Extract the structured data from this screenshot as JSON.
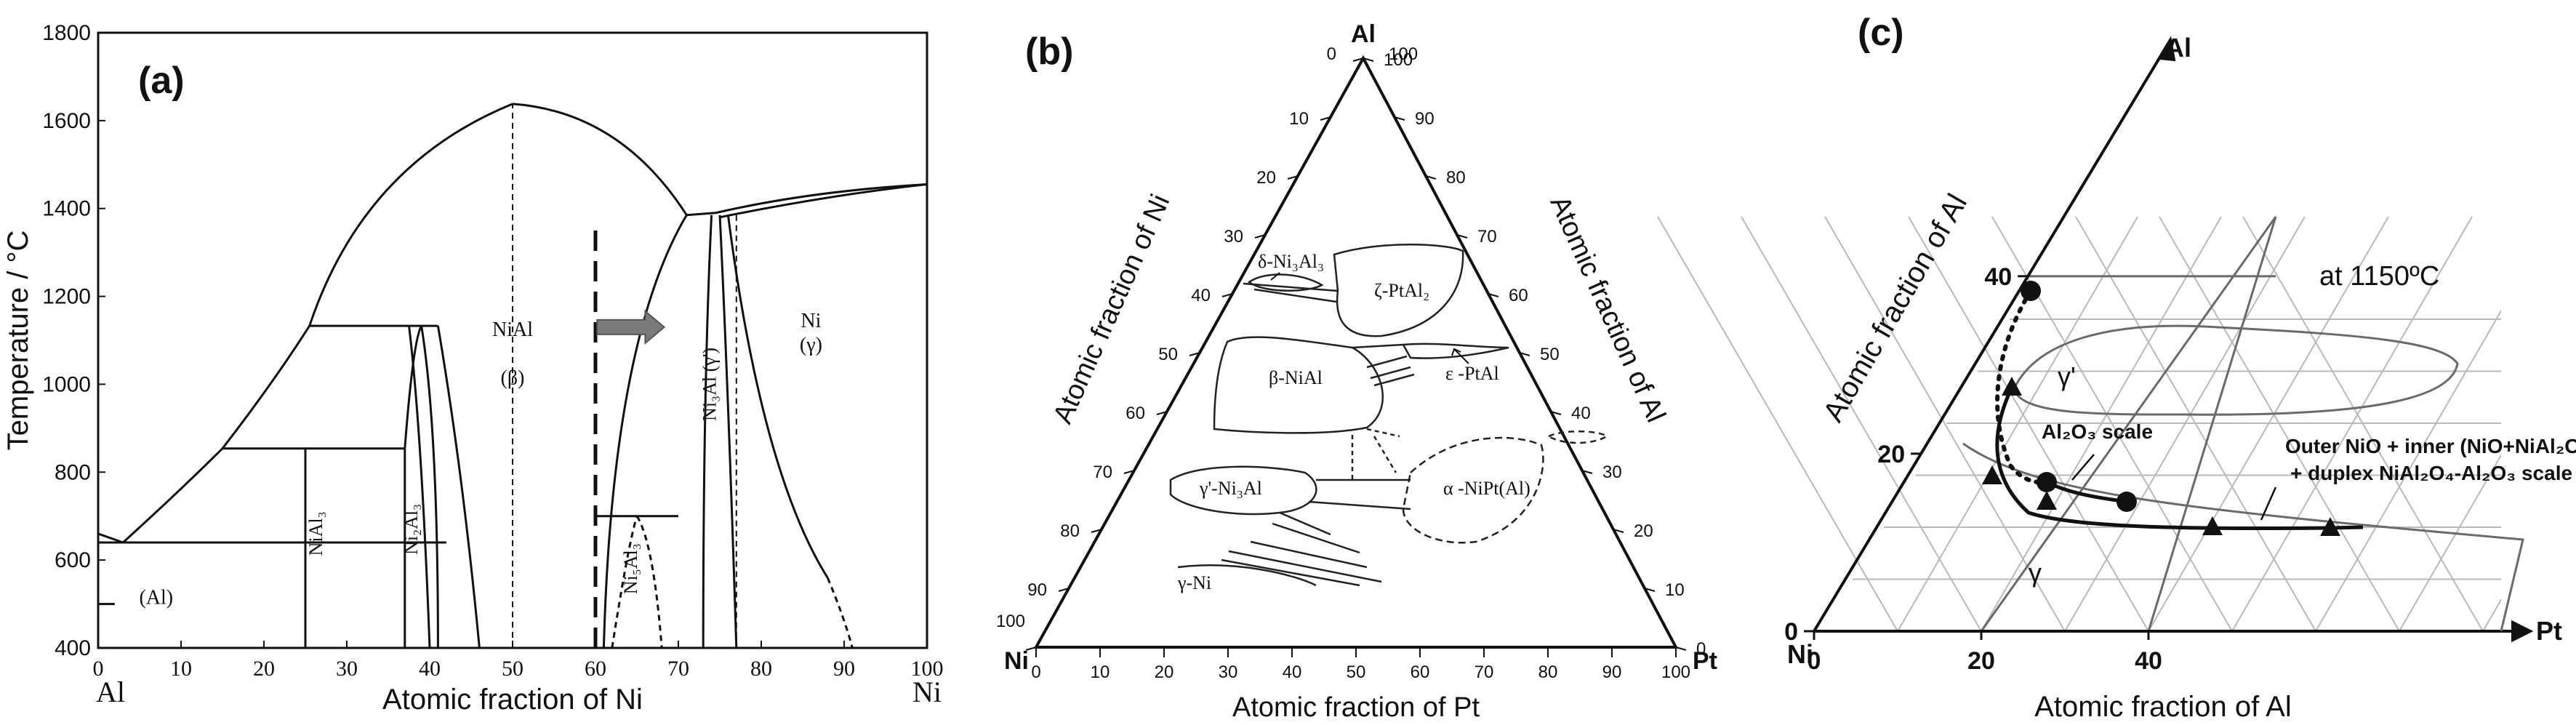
{
  "chart_data": [
    {
      "type": "phase-diagram-binary",
      "panel_label": "(a)",
      "ylabel": "Temperature / °C",
      "xlabel": "Atomic fraction of Ni",
      "xlim": [
        0,
        100
      ],
      "ylim": [
        400,
        1800
      ],
      "xticks": [
        "0",
        "10",
        "20",
        "30",
        "40",
        "50",
        "60",
        "70",
        "80",
        "90",
        "100"
      ],
      "yticks": [
        "400",
        "600",
        "800",
        "1000",
        "1200",
        "1400",
        "1600",
        "1800"
      ],
      "endpoints": [
        "Al",
        "Ni"
      ],
      "phase_labels": [
        {
          "text": "NiAl",
          "x": 50,
          "y": 1110
        },
        {
          "text": "(β)",
          "x": 50,
          "y": 1000
        },
        {
          "text": "Ni",
          "x": 86,
          "y": 1130
        },
        {
          "text": "(γ)",
          "x": 86,
          "y": 1075
        },
        {
          "text": "Ni₃Al (γ')",
          "x": 74.5,
          "y": 1000
        },
        {
          "text": "NiAl₃",
          "x": 27,
          "y": 660
        },
        {
          "text": "Ni₂Al₃",
          "x": 38.5,
          "y": 670
        },
        {
          "text": "Ni₅Al₃",
          "x": 65,
          "y": 580
        },
        {
          "text": "(Al)",
          "x": 7,
          "y": 500
        }
      ],
      "key_points": {
        "NiAl_melting": {
          "x": 50,
          "y": 1638
        },
        "Al_melting": {
          "x": 0,
          "y": 660
        },
        "Ni_melting": {
          "x": 100,
          "y": 1455
        },
        "eutectic_Al": {
          "x": 3,
          "y": 640
        },
        "peritectic_NiAl3": {
          "x": 25,
          "y": 854
        },
        "peritectic_Ni2Al3": {
          "x": 37,
          "y": 1133
        },
        "Ni3Al_peritectic": {
          "x": 74,
          "y": 1385
        }
      },
      "dashed_marker_x": 60,
      "arrow": {
        "from_x": 60,
        "to_x": 68,
        "y": 1130
      }
    },
    {
      "type": "ternary-phase-diagram",
      "panel_label": "(b)",
      "vertices": [
        "Al",
        "Ni",
        "Pt"
      ],
      "left_axis_label": "Atomic fraction of Ni",
      "right_axis_label": "Atomic fraction of Al",
      "bottom_axis_label": "Atomic fraction of Pt",
      "ticks": [
        "0",
        "10",
        "20",
        "30",
        "40",
        "50",
        "60",
        "70",
        "80",
        "90",
        "100"
      ],
      "phase_labels": [
        "δ-Ni₃Al₃",
        "ζ-PtAl₂",
        "ε -PtAl",
        "β-NiAl",
        "γ'-Ni₃Al",
        "α -NiPt(Al)",
        "γ-Ni"
      ]
    },
    {
      "type": "ternary-phase-diagram-partial",
      "panel_label": "(c)",
      "vertices": [
        "Al",
        "Ni",
        "Pt"
      ],
      "left_axis_label": "Atomic fraction of Al",
      "bottom_axis_label": "Atomic fraction of Al",
      "left_ticks": [
        "0",
        "20",
        "40"
      ],
      "bottom_ticks": [
        "0",
        "20",
        "40"
      ],
      "temperature_label": "at 1150ºC",
      "region_labels": [
        "γ'",
        "γ"
      ],
      "scale_labels": [
        "Al₂O₃ scale",
        "Outer NiO + inner (NiO+NiAl₂O₄)",
        "+ duplex NiAl₂O₄-Al₂O₃ scale"
      ]
    }
  ]
}
